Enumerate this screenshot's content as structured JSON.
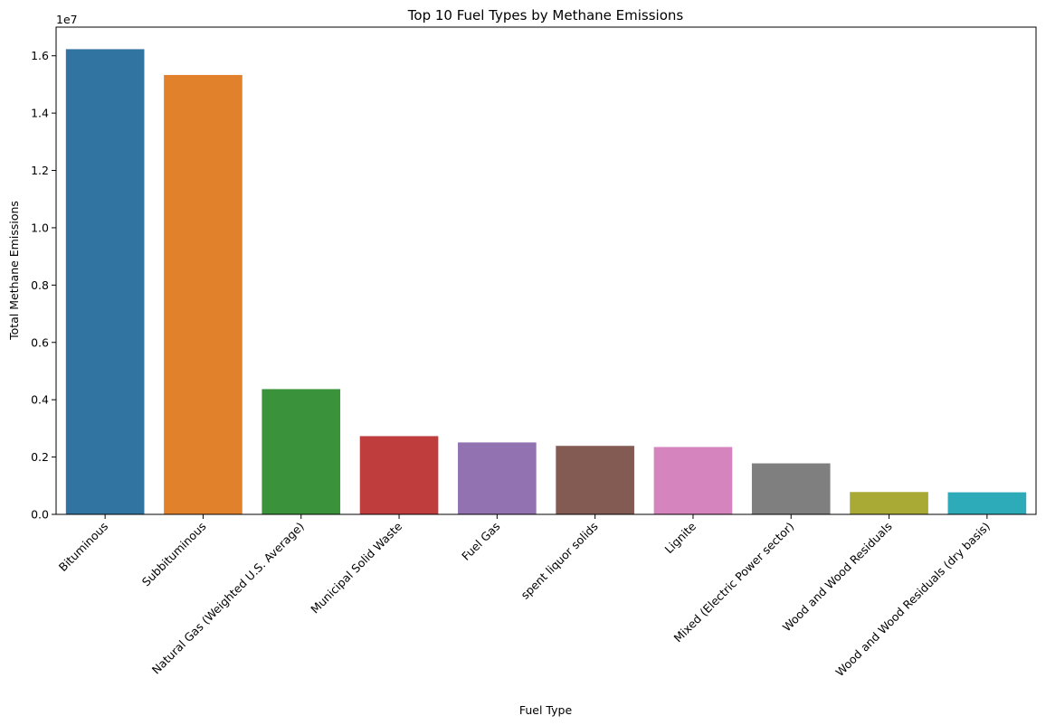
{
  "chart_data": {
    "type": "bar",
    "title": "Top 10 Fuel Types by Methane Emissions",
    "xlabel": "Fuel Type",
    "ylabel": "Total Methane Emissions",
    "y_scale_exponent_label": "1e7",
    "y_scale_multiplier": 10000000,
    "ylim": [
      0,
      17000000
    ],
    "yticks": [
      0,
      2000000,
      4000000,
      6000000,
      8000000,
      10000000,
      12000000,
      14000000,
      16000000
    ],
    "ytick_labels": [
      "0.0",
      "0.2",
      "0.4",
      "0.6",
      "0.8",
      "1.0",
      "1.2",
      "1.4",
      "1.6"
    ],
    "grid": false,
    "categories": [
      "Bituminous",
      "Subbituminous",
      "Natural Gas (Weighted U.S. Average)",
      "Municipal Solid Waste",
      "Fuel Gas",
      "spent liquor solids",
      "Lignite",
      "Mixed (Electric Power sector)",
      "Wood and Wood Residuals",
      "Wood and Wood Residuals (dry basis)"
    ],
    "values": [
      16230000,
      15330000,
      4370000,
      2730000,
      2510000,
      2390000,
      2350000,
      1780000,
      780000,
      770000
    ],
    "colors": [
      "#3274a1",
      "#e1812c",
      "#3a923a",
      "#c03d3e",
      "#9372b2",
      "#845b53",
      "#d684bd",
      "#7f7f7f",
      "#a9aa35",
      "#2eabb8"
    ]
  }
}
